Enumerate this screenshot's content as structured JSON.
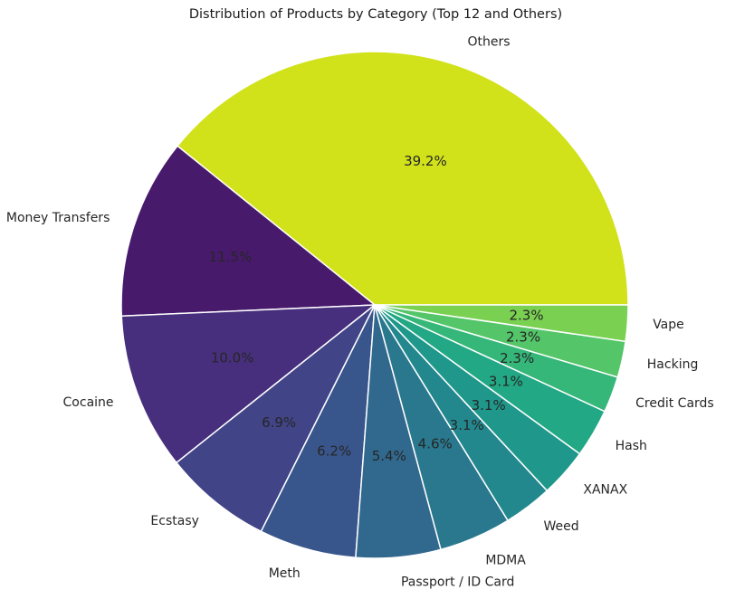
{
  "chart_data": {
    "type": "pie",
    "title": "Distribution of Products by Category (Top 12 and Others)",
    "start_angle_deg": 0,
    "direction": "counterclockwise",
    "slices": [
      {
        "label": "Others",
        "value": 39.2,
        "pct_label": "39.2%",
        "color": "#d1e21b"
      },
      {
        "label": "Money Transfers",
        "value": 11.5,
        "pct_label": "11.5%",
        "color": "#481a6c"
      },
      {
        "label": "Cocaine",
        "value": 10.0,
        "pct_label": "10.0%",
        "color": "#472f7d"
      },
      {
        "label": "Ecstasy",
        "value": 6.9,
        "pct_label": "6.9%",
        "color": "#414487"
      },
      {
        "label": "Meth",
        "value": 6.2,
        "pct_label": "6.2%",
        "color": "#39568c"
      },
      {
        "label": "Passport / ID Card",
        "value": 5.4,
        "pct_label": "5.4%",
        "color": "#31688e"
      },
      {
        "label": "MDMA",
        "value": 4.6,
        "pct_label": "4.6%",
        "color": "#2a788e"
      },
      {
        "label": "Weed",
        "value": 3.1,
        "pct_label": "3.1%",
        "color": "#23888e"
      },
      {
        "label": "XANAX",
        "value": 3.1,
        "pct_label": "3.1%",
        "color": "#1f988b"
      },
      {
        "label": "Hash",
        "value": 3.1,
        "pct_label": "3.1%",
        "color": "#22a884"
      },
      {
        "label": "Credit Cards",
        "value": 2.3,
        "pct_label": "2.3%",
        "color": "#35b779"
      },
      {
        "label": "Hacking",
        "value": 2.3,
        "pct_label": "2.3%",
        "color": "#54c568"
      },
      {
        "label": "Vape",
        "value": 2.3,
        "pct_label": "2.3%",
        "color": "#7ad151"
      }
    ]
  }
}
